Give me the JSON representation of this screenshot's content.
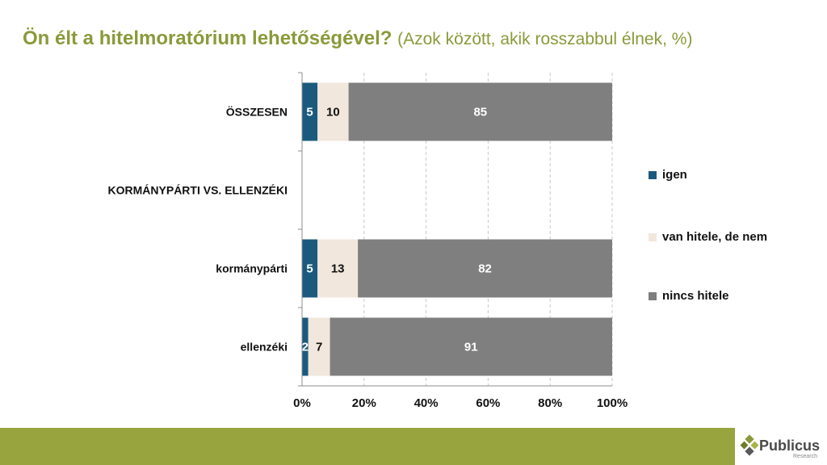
{
  "title": {
    "main": "Ön élt a hitelmoratórium lehetőségével?",
    "sub": "(Azok között, akik rosszabbul élnek, %)"
  },
  "chart_data": {
    "type": "bar",
    "orientation": "horizontal",
    "stacked": true,
    "categories": [
      "ÖSSZESEN",
      "KORMÁNYPÁRTI VS. ELLENZÉKI",
      "kormánypárti",
      "ellenzéki"
    ],
    "series": [
      {
        "name": "igen",
        "color": "#1b5a7d",
        "values": [
          5,
          null,
          5,
          2
        ]
      },
      {
        "name": "van hitele, de nem",
        "color": "#f1e7dc",
        "values": [
          10,
          null,
          13,
          7
        ]
      },
      {
        "name": "nincs hitele",
        "color": "#7f7f7f",
        "values": [
          85,
          null,
          82,
          91
        ]
      }
    ],
    "x_ticks": [
      "0%",
      "20%",
      "40%",
      "60%",
      "80%",
      "100%"
    ],
    "xlim": [
      0,
      100
    ],
    "grid": "vertical dashed",
    "legend_position": "right"
  },
  "brand": {
    "name": "Publicus",
    "sub": "Research",
    "footer_color": "#98a43d",
    "accent_green": "#8a9a3a"
  }
}
